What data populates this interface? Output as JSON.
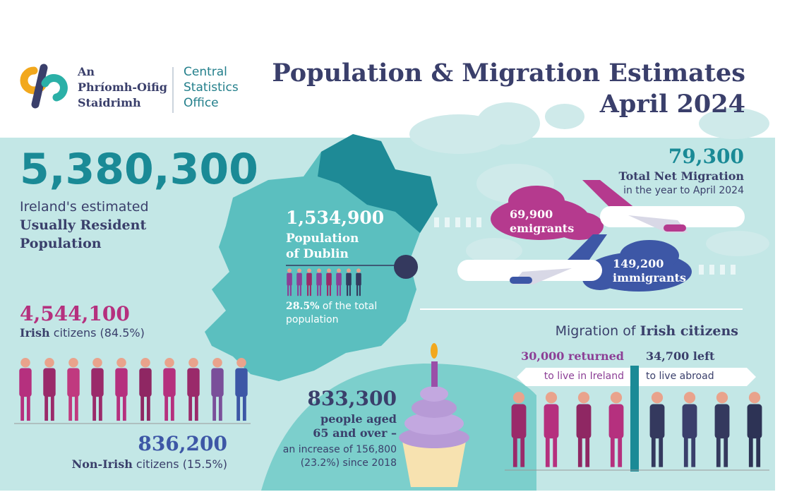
{
  "logo": {
    "irish": [
      "An",
      "Phríomh-Oifig",
      "Staidrimh"
    ],
    "english": [
      "Central",
      "Statistics",
      "Office"
    ]
  },
  "title": [
    "Population & Migration Estimates",
    "April 2024"
  ],
  "population": {
    "value": "5,380,300",
    "label": "Ireland's estimated",
    "label_bold": [
      "Usually Resident",
      "Population"
    ]
  },
  "irish_citizens": {
    "value": "4,544,100",
    "bold": "Irish",
    "rest": "citizens (84.5%)"
  },
  "non_irish_citizens": {
    "value": "836,200",
    "bold": "Non-Irish",
    "rest": "citizens (15.5%)"
  },
  "dublin": {
    "value": "1,534,900",
    "label": [
      "Population",
      "of Dublin"
    ],
    "share": "28.5%",
    "share_rest": [
      "of the total",
      "population"
    ]
  },
  "older": {
    "value": "833,300",
    "bold": [
      "people aged",
      "65 and over –"
    ],
    "rest": [
      "an increase of 156,800",
      "(23.2%) since 2018"
    ]
  },
  "net_migration": {
    "value": "79,300",
    "label": "Total Net Migration",
    "sub": "in the year to April 2024"
  },
  "emigrants": {
    "value": "69,900",
    "label": "emigrants"
  },
  "immigrants": {
    "value": "149,200",
    "label": "immigrants"
  },
  "irish_migration": {
    "title": "Migration of",
    "title_bold": "Irish citizens",
    "returned": {
      "value": "30,000 returned",
      "label": "to live in Ireland"
    },
    "left": {
      "value": "34,700 left",
      "label": "to live abroad"
    }
  }
}
